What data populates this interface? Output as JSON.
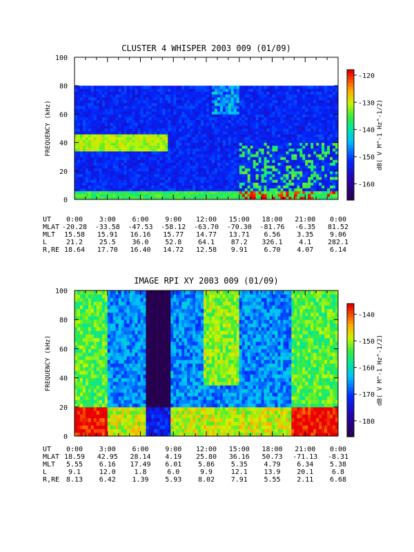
{
  "chart_data": [
    {
      "type": "heatmap",
      "title": "CLUSTER 4 WHISPER 2003 009 (01/09)",
      "ylabel": "FREQUENCY (kHz)",
      "ylim": [
        0,
        100
      ],
      "y_ticks": [
        "0",
        "20",
        "40",
        "60",
        "80",
        "100"
      ],
      "data_upper_kHz": 80,
      "x_ticks": [
        "0:00",
        "3:00",
        "6:00",
        "9:00",
        "12:00",
        "15:00",
        "18:00",
        "21:00",
        "0:00"
      ],
      "colorbar": {
        "label": "dB( V M^-1 Hz^-1/2)",
        "range": [
          -166,
          -118
        ],
        "ticks": [
          "-120",
          "-130",
          "-140",
          "-150",
          "-160"
        ]
      },
      "ephemeris": [
        {
          "label": "UT",
          "values": [
            "0:00",
            "3:00",
            "6:00",
            "9:00",
            "12:00",
            "15:00",
            "18:00",
            "21:00",
            "0:00"
          ]
        },
        {
          "label": "MLAT",
          "values": [
            "-20.28",
            "-33.58",
            "-47.53",
            "-58.12",
            "-63.70",
            "-70.30",
            "-81.76",
            "-6.35",
            "81.52"
          ]
        },
        {
          "label": "MLT",
          "values": [
            "15.58",
            "15.91",
            "16.16",
            "15.77",
            "14.77",
            "13.71",
            "6.56",
            "3.35",
            "9.06"
          ]
        },
        {
          "label": "L",
          "values": [
            "21.2",
            "25.5",
            "36.0",
            "52.8",
            "64.1",
            "87.2",
            "326.1",
            "4.1",
            "282.1"
          ]
        },
        {
          "label": "R,RE",
          "values": [
            "18.64",
            "17.70",
            "16.40",
            "14.72",
            "12.58",
            "9.91",
            "6.70",
            "4.07",
            "6.14"
          ]
        }
      ]
    },
    {
      "type": "heatmap",
      "title": "IMAGE RPI XY 2003 009 (01/09)",
      "ylabel": "FREQUENCY (kHz)",
      "ylim": [
        0,
        100
      ],
      "y_ticks": [
        "0",
        "20",
        "40",
        "60",
        "80",
        "100"
      ],
      "x_ticks": [
        "0:00",
        "3:00",
        "6:00",
        "9:00",
        "12:00",
        "15:00",
        "18:00",
        "21:00",
        "0:00"
      ],
      "colorbar": {
        "label": "dB( V M^-1 Hz^-1/2)",
        "range": [
          -186,
          -136
        ],
        "ticks": [
          "-140",
          "-150",
          "-160",
          "-170",
          "-180"
        ]
      },
      "ephemeris": [
        {
          "label": "UT",
          "values": [
            "0:00",
            "3:00",
            "6:00",
            "9:00",
            "12:00",
            "15:00",
            "18:00",
            "21:00",
            "0:00"
          ]
        },
        {
          "label": "MLAT",
          "values": [
            "18.59",
            "42.95",
            "28.14",
            "4.19",
            "25.80",
            "36.16",
            "50.73",
            "-71.13",
            "-8.31"
          ]
        },
        {
          "label": "MLT",
          "values": [
            "5.55",
            "6.16",
            "17.49",
            "6.01",
            "5.86",
            "5.35",
            "4.79",
            "6.34",
            "5.38"
          ]
        },
        {
          "label": "L",
          "values": [
            "9.1",
            "12.0",
            "1.8",
            "6.0",
            "9.9",
            "12.1",
            "13.9",
            "20.1",
            "6.8"
          ]
        },
        {
          "label": "R,RE",
          "values": [
            "8.13",
            "6.42",
            "1.39",
            "5.93",
            "8.02",
            "7.91",
            "5.55",
            "2.11",
            "6.68"
          ]
        }
      ]
    }
  ]
}
